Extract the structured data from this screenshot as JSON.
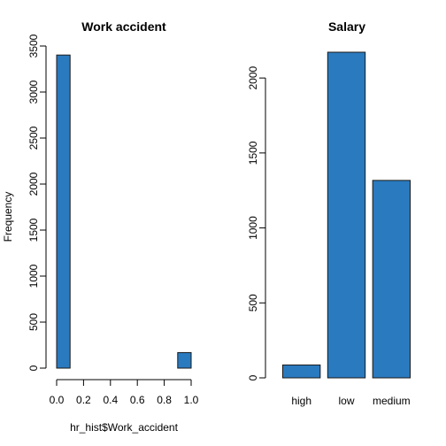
{
  "chart_data": [
    {
      "type": "bar",
      "subtype": "histogram",
      "title": "Work accident",
      "xlabel": "hr_hist$Work_accident",
      "ylabel": "Frequency",
      "xlim": [
        0,
        1
      ],
      "ylim": [
        0,
        3500
      ],
      "x_ticks": [
        "0.0",
        "0.2",
        "0.4",
        "0.6",
        "0.8",
        "1.0"
      ],
      "y_ticks": [
        "0",
        "500",
        "1000",
        "1500",
        "2000",
        "2500",
        "3000",
        "3500"
      ],
      "bins": [
        {
          "from": 0.0,
          "to": 0.1,
          "value": 3402
        },
        {
          "from": 0.1,
          "to": 0.2,
          "value": 0
        },
        {
          "from": 0.2,
          "to": 0.3,
          "value": 0
        },
        {
          "from": 0.3,
          "to": 0.4,
          "value": 0
        },
        {
          "from": 0.4,
          "to": 0.5,
          "value": 0
        },
        {
          "from": 0.5,
          "to": 0.6,
          "value": 0
        },
        {
          "from": 0.6,
          "to": 0.7,
          "value": 0
        },
        {
          "from": 0.7,
          "to": 0.8,
          "value": 0
        },
        {
          "from": 0.8,
          "to": 0.9,
          "value": 0
        },
        {
          "from": 0.9,
          "to": 1.0,
          "value": 169
        }
      ],
      "bar_color": "#2a7abf"
    },
    {
      "type": "bar",
      "title": "Salary",
      "xlabel": "",
      "ylabel": "",
      "categories": [
        "high",
        "low",
        "medium"
      ],
      "values": [
        86,
        2172,
        1317
      ],
      "ylim": [
        0,
        2172
      ],
      "y_ticks": [
        "0",
        "500",
        "1000",
        "1500",
        "2000"
      ],
      "bar_color": "#2a7abf"
    }
  ]
}
